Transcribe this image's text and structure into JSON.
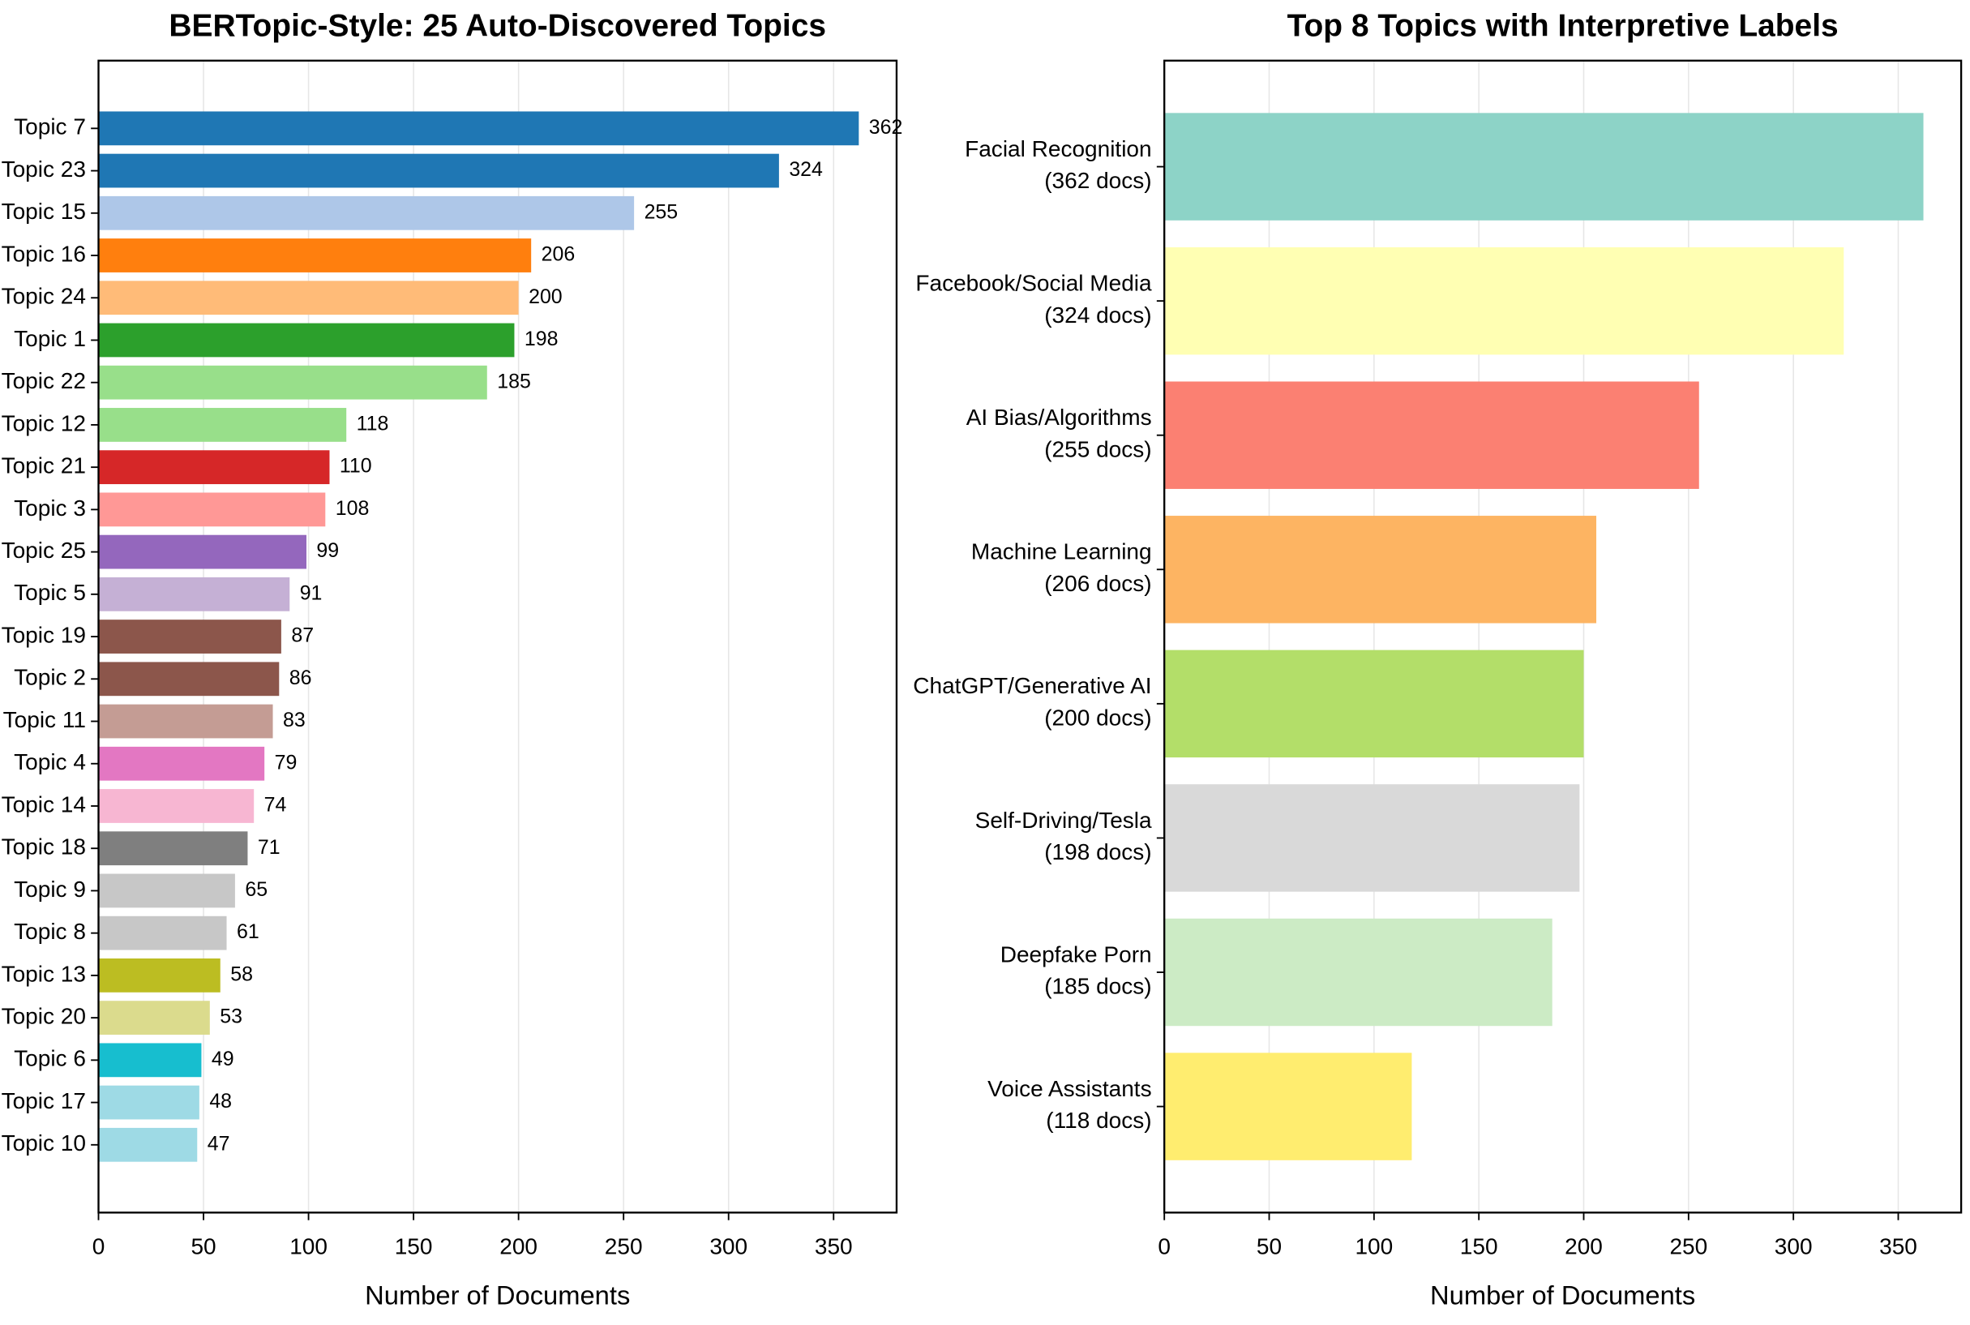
{
  "chart_data": [
    {
      "type": "barh",
      "title": "BERTopic-Style: 25 Auto-Discovered Topics",
      "xlabel": "Number of Documents",
      "categories": [
        "Topic 7",
        "Topic 23",
        "Topic 15",
        "Topic 16",
        "Topic 24",
        "Topic 1",
        "Topic 22",
        "Topic 12",
        "Topic 21",
        "Topic 3",
        "Topic 25",
        "Topic 5",
        "Topic 19",
        "Topic 2",
        "Topic 11",
        "Topic 4",
        "Topic 14",
        "Topic 18",
        "Topic 9",
        "Topic 8",
        "Topic 13",
        "Topic 20",
        "Topic 6",
        "Topic 17",
        "Topic 10"
      ],
      "values": [
        362,
        324,
        255,
        206,
        200,
        198,
        185,
        118,
        110,
        108,
        99,
        91,
        87,
        86,
        83,
        79,
        74,
        71,
        65,
        61,
        58,
        53,
        49,
        48,
        47
      ],
      "colors": [
        "#1f77b4",
        "#1f77b4",
        "#aec7e8",
        "#ff7f0e",
        "#ffbb78",
        "#2ca02c",
        "#98df8a",
        "#98df8a",
        "#d62728",
        "#ff9896",
        "#9467bd",
        "#c5b0d5",
        "#8c564b",
        "#8c564b",
        "#c49c94",
        "#e377c2",
        "#f7b6d2",
        "#7f7f7f",
        "#c7c7c7",
        "#c7c7c7",
        "#bcbd22",
        "#dbdb8d",
        "#17becf",
        "#9edae5",
        "#9edae5"
      ],
      "show_value_labels": true,
      "xlim": [
        0,
        380
      ],
      "xticks": [
        0,
        50,
        100,
        150,
        200,
        250,
        300,
        350
      ],
      "grid": true
    },
    {
      "type": "barh",
      "title": "Top 8 Topics with Interpretive Labels",
      "xlabel": "Number of Documents",
      "categories": [
        "Facial Recognition\n(362 docs)",
        "Facebook/Social Media\n(324 docs)",
        "AI Bias/Algorithms\n(255 docs)",
        "Machine Learning\n(206 docs)",
        "ChatGPT/Generative AI\n(200 docs)",
        "Self-Driving/Tesla\n(198 docs)",
        "Deepfake Porn\n(185 docs)",
        "Voice Assistants\n(118 docs)"
      ],
      "values": [
        362,
        324,
        255,
        206,
        200,
        198,
        185,
        118
      ],
      "colors": [
        "#8dd3c7",
        "#ffffb3",
        "#fb8072",
        "#fdb462",
        "#b3de69",
        "#d9d9d9",
        "#ccebc5",
        "#ffed6f"
      ],
      "show_value_labels": false,
      "xlim": [
        0,
        380
      ],
      "xticks": [
        0,
        50,
        100,
        150,
        200,
        250,
        300,
        350
      ],
      "grid": true
    }
  ]
}
